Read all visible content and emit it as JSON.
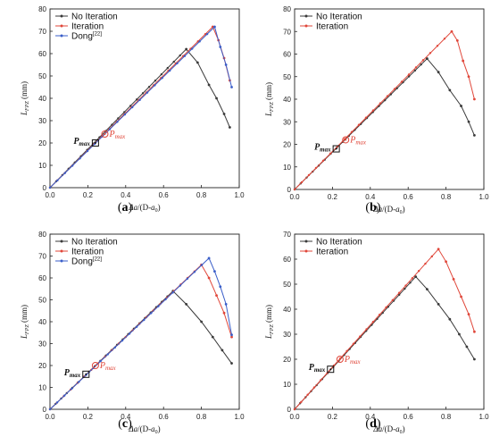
{
  "colors": {
    "no_iteration": "#3a3a3a",
    "iteration": "#e0473a",
    "dong": "#3a5ec9",
    "marker_pmax": "#e0473a"
  },
  "chart_data": [
    {
      "type": "line",
      "panel": "(a)",
      "xlabel": "Δa/(D-a0)",
      "ylabel": "LFPZ (mm)",
      "xlim": [
        0,
        1.0
      ],
      "ylim": [
        0,
        80
      ],
      "xticks": [
        "0.0",
        "0.2",
        "0.4",
        "0.6",
        "0.8",
        "1.0"
      ],
      "yticks": [
        "0",
        "10",
        "20",
        "30",
        "40",
        "50",
        "60",
        "70",
        "80"
      ],
      "legend": "top-left",
      "annotations": [
        {
          "label": "Pmax",
          "x": 0.24,
          "y": 20,
          "style": "square"
        },
        {
          "label": "Pmax",
          "x": 0.29,
          "y": 24,
          "style": "circle"
        }
      ],
      "series": [
        {
          "name": "No Iteration",
          "color_key": "no_iteration",
          "x": [
            0.0,
            0.72,
            0.78,
            0.84,
            0.88,
            0.92,
            0.95
          ],
          "y": [
            0,
            62,
            56,
            46,
            40,
            33,
            27
          ]
        },
        {
          "name": "Iteration",
          "color_key": "iteration",
          "x": [
            0.0,
            0.86,
            0.89,
            0.92,
            0.95
          ],
          "y": [
            0,
            72,
            66,
            58,
            48
          ]
        },
        {
          "name": "Dong[22]",
          "color_key": "dong",
          "x": [
            0.0,
            0.87,
            0.9,
            0.93,
            0.96
          ],
          "y": [
            0,
            72,
            63,
            55,
            45
          ]
        }
      ]
    },
    {
      "type": "line",
      "panel": "(b)",
      "xlabel": "Δa/(D-a0)",
      "ylabel": "LFPZ (mm)",
      "xlim": [
        0,
        1.0
      ],
      "ylim": [
        0,
        80
      ],
      "xticks": [
        "0.0",
        "0.2",
        "0.4",
        "0.6",
        "0.8",
        "1.0"
      ],
      "yticks": [
        "0",
        "10",
        "20",
        "30",
        "40",
        "50",
        "60",
        "70",
        "80"
      ],
      "legend": "top-left",
      "annotations": [
        {
          "label": "Pmax",
          "x": 0.22,
          "y": 18,
          "style": "square"
        },
        {
          "label": "Pmax",
          "x": 0.27,
          "y": 22,
          "style": "circle"
        }
      ],
      "series": [
        {
          "name": "No Iteration",
          "color_key": "no_iteration",
          "x": [
            0.0,
            0.7,
            0.76,
            0.82,
            0.88,
            0.92,
            0.95
          ],
          "y": [
            0,
            58,
            52,
            44,
            37,
            30,
            24
          ]
        },
        {
          "name": "Iteration",
          "color_key": "iteration",
          "x": [
            0.0,
            0.83,
            0.86,
            0.89,
            0.92,
            0.95
          ],
          "y": [
            0,
            70,
            66,
            57,
            50,
            40
          ]
        }
      ]
    },
    {
      "type": "line",
      "panel": "(c)",
      "xlabel": "Δa/(D-a0)",
      "ylabel": "LFPZ (mm)",
      "xlim": [
        0,
        1.0
      ],
      "ylim": [
        0,
        80
      ],
      "xticks": [
        "0.0",
        "0.2",
        "0.4",
        "0.6",
        "0.8",
        "1.0"
      ],
      "yticks": [
        "0",
        "10",
        "20",
        "30",
        "40",
        "50",
        "60",
        "70",
        "80"
      ],
      "legend": "top-left",
      "annotations": [
        {
          "label": "Pmax",
          "x": 0.19,
          "y": 16,
          "style": "square"
        },
        {
          "label": "Pmax",
          "x": 0.24,
          "y": 20,
          "style": "circle"
        }
      ],
      "series": [
        {
          "name": "No Iteration",
          "color_key": "no_iteration",
          "x": [
            0.0,
            0.65,
            0.72,
            0.8,
            0.86,
            0.91,
            0.96
          ],
          "y": [
            0,
            54,
            48,
            40,
            33,
            27,
            21
          ]
        },
        {
          "name": "Iteration",
          "color_key": "iteration",
          "x": [
            0.0,
            0.8,
            0.84,
            0.88,
            0.92,
            0.96
          ],
          "y": [
            0,
            66,
            60,
            52,
            44,
            33
          ]
        },
        {
          "name": "Dong[22]",
          "color_key": "dong",
          "x": [
            0.0,
            0.84,
            0.87,
            0.9,
            0.93,
            0.96
          ],
          "y": [
            0,
            69,
            63,
            56,
            48,
            34
          ]
        }
      ]
    },
    {
      "type": "line",
      "panel": "(d)",
      "xlabel": "Δa/(D-a0)",
      "ylabel": "LFPZ (mm)",
      "xlim": [
        0,
        1.0
      ],
      "ylim": [
        0,
        70
      ],
      "xticks": [
        "0.0",
        "0.2",
        "0.4",
        "0.6",
        "0.8",
        "1.0"
      ],
      "yticks": [
        "0",
        "10",
        "20",
        "30",
        "40",
        "50",
        "60",
        "70"
      ],
      "legend": "top-left",
      "annotations": [
        {
          "label": "Pmax",
          "x": 0.19,
          "y": 16,
          "style": "square"
        },
        {
          "label": "Pmax",
          "x": 0.24,
          "y": 20,
          "style": "circle"
        }
      ],
      "series": [
        {
          "name": "No Iteration",
          "color_key": "no_iteration",
          "x": [
            0.0,
            0.64,
            0.7,
            0.76,
            0.82,
            0.87,
            0.91,
            0.95
          ],
          "y": [
            0,
            53,
            48,
            42,
            36,
            30,
            25,
            20
          ]
        },
        {
          "name": "Iteration",
          "color_key": "iteration",
          "x": [
            0.0,
            0.76,
            0.8,
            0.84,
            0.88,
            0.92,
            0.95
          ],
          "y": [
            0,
            64,
            59,
            52,
            45,
            38,
            31
          ]
        }
      ]
    }
  ]
}
